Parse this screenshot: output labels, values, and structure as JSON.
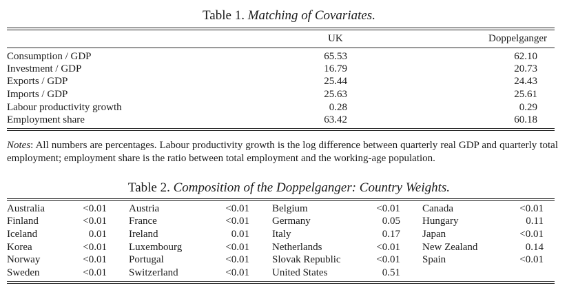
{
  "table1": {
    "number": "Table 1.",
    "caption": "Matching of Covariates.",
    "headers": {
      "uk": "UK",
      "doppelganger": "Doppelganger"
    },
    "rows": [
      {
        "label": "Consumption / GDP",
        "uk": "65.53",
        "doppelganger": "62.10"
      },
      {
        "label": "Investment / GDP",
        "uk": "16.79",
        "doppelganger": "20.73"
      },
      {
        "label": "Exports / GDP",
        "uk": "25.44",
        "doppelganger": "24.43"
      },
      {
        "label": "Imports / GDP",
        "uk": "25.63",
        "doppelganger": "25.61"
      },
      {
        "label": "Labour productivity growth",
        "uk": "0.28",
        "doppelganger": "0.29"
      },
      {
        "label": "Employment share",
        "uk": "63.42",
        "doppelganger": "60.18"
      }
    ]
  },
  "notes": {
    "label": "Notes",
    "text": ": All numbers are percentages. Labour productivity growth is the log difference between quarterly real GDP and quarterly total employment; employment share is the ratio between total employment and the working-age population."
  },
  "table2": {
    "number": "Table 2.",
    "caption": "Composition of the Doppelganger: Country Weights.",
    "rows": [
      [
        {
          "country": "Australia",
          "weight": "<0.01"
        },
        {
          "country": "Austria",
          "weight": "<0.01"
        },
        {
          "country": "Belgium",
          "weight": "<0.01"
        },
        {
          "country": "Canada",
          "weight": "<0.01"
        }
      ],
      [
        {
          "country": "Finland",
          "weight": "<0.01"
        },
        {
          "country": "France",
          "weight": "<0.01"
        },
        {
          "country": "Germany",
          "weight": "0.05"
        },
        {
          "country": "Hungary",
          "weight": "0.11"
        }
      ],
      [
        {
          "country": "Iceland",
          "weight": "0.01"
        },
        {
          "country": "Ireland",
          "weight": "0.01"
        },
        {
          "country": "Italy",
          "weight": "0.17"
        },
        {
          "country": "Japan",
          "weight": "<0.01"
        }
      ],
      [
        {
          "country": "Korea",
          "weight": "<0.01"
        },
        {
          "country": "Luxembourg",
          "weight": "<0.01"
        },
        {
          "country": "Netherlands",
          "weight": "<0.01"
        },
        {
          "country": "New Zealand",
          "weight": "0.14"
        }
      ],
      [
        {
          "country": "Norway",
          "weight": "<0.01"
        },
        {
          "country": "Portugal",
          "weight": "<0.01"
        },
        {
          "country": "Slovak Republic",
          "weight": "<0.01"
        },
        {
          "country": "Spain",
          "weight": "<0.01"
        }
      ],
      [
        {
          "country": "Sweden",
          "weight": "<0.01"
        },
        {
          "country": "Switzerland",
          "weight": "<0.01"
        },
        {
          "country": "United States",
          "weight": "0.51"
        },
        {
          "country": "",
          "weight": ""
        }
      ]
    ]
  }
}
